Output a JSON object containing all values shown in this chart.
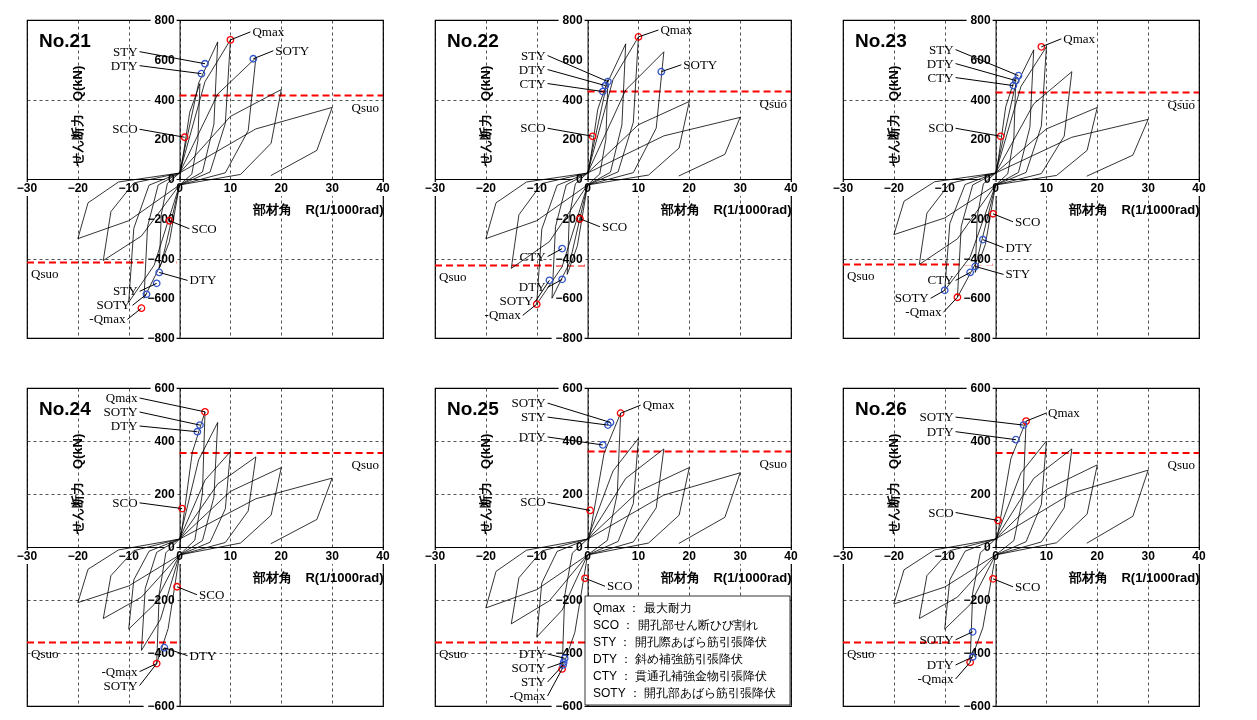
{
  "chart_data": [
    {
      "type": "line",
      "title": "No.21",
      "xlabel": "部材角　R(1/1000rad)",
      "ylabel": "せん断力　Q(kN)",
      "xlim": [
        -30,
        40
      ],
      "xticks": [
        -30,
        -20,
        -10,
        0,
        10,
        20,
        30,
        40
      ],
      "ylim": [
        -800,
        800
      ],
      "yticks": [
        -800,
        -600,
        -400,
        -200,
        0,
        200,
        400,
        600,
        800
      ],
      "grid": true,
      "series": [
        {
          "type": "line",
          "color": "#000000",
          "x": [
            0,
            2,
            4,
            3.6,
            2.4,
            0,
            -2,
            -4,
            -3.6,
            -2.4,
            0,
            3.75,
            7.5,
            6.75,
            4.5,
            0,
            -3.5,
            -7,
            -6.3,
            -4.2,
            0,
            5,
            10,
            9,
            6,
            0,
            -5,
            -10,
            -9,
            -6,
            0,
            7.5,
            15,
            13.5,
            9,
            0,
            -7.5,
            -15,
            -13.5,
            -9,
            0,
            10,
            20,
            18,
            12,
            0,
            -10,
            -20,
            -18,
            -12,
            0,
            15,
            30,
            27,
            18
          ],
          "values": [
            0,
            336,
            480,
            192,
            24,
            -30,
            -315,
            -450,
            -180,
            -22,
            30,
            483,
            690,
            276,
            35,
            -30,
            -420,
            -600,
            -240,
            -30,
            30,
            490,
            700,
            280,
            35,
            -30,
            -434,
            -620,
            -248,
            -31,
            30,
            427,
            610,
            244,
            31,
            -30,
            -287,
            -410,
            -164,
            -20,
            30,
            315,
            450,
            180,
            23,
            -30,
            -210,
            -300,
            -120,
            -15,
            30,
            252,
            360,
            144,
            18
          ]
        },
        {
          "type": "scatter",
          "marker": "circle",
          "color": "#ff0000",
          "x": [
            10,
            1,
            -2,
            -7.5
          ],
          "values": [
            700,
            210,
            -210,
            -650
          ]
        },
        {
          "type": "scatter",
          "marker": "circle",
          "color": "#3355cc",
          "x": [
            5,
            4.3,
            14.5,
            -4,
            -4.5,
            -6.5
          ],
          "values": [
            580,
            530,
            605,
            -470,
            -525,
            -580
          ]
        }
      ],
      "ref_lines": [
        {
          "axis": "y",
          "value": 420,
          "label": "Qsuo",
          "color": "#ff0000",
          "line_style": "dashed"
        },
        {
          "axis": "y",
          "value": -420,
          "label": "Qsuo",
          "color": "#ff0000",
          "line_style": "dashed"
        }
      ],
      "annotations": [
        {
          "text": "Qmax",
          "x": 10,
          "y": 700
        },
        {
          "text": "STY",
          "x": 5,
          "y": 580
        },
        {
          "text": "DTY",
          "x": 4.3,
          "y": 530
        },
        {
          "text": "SOTY",
          "x": 14.5,
          "y": 605
        },
        {
          "text": "SCO",
          "x": 1,
          "y": 210
        },
        {
          "text": "SCO",
          "x": -2,
          "y": -210
        },
        {
          "text": "DTY",
          "x": -4,
          "y": -470
        },
        {
          "text": "STY",
          "x": -4.5,
          "y": -525
        },
        {
          "text": "SOTY",
          "x": -6.5,
          "y": -580
        },
        {
          "text": "-Qmax",
          "x": -7.5,
          "y": -650
        }
      ]
    },
    {
      "type": "line",
      "title": "No.22",
      "xlabel": "部材角　R(1/1000rad)",
      "ylabel": "せん断力　Q(kN)",
      "xlim": [
        -30,
        40
      ],
      "xticks": [
        -30,
        -20,
        -10,
        0,
        10,
        20,
        30,
        40
      ],
      "ylim": [
        -800,
        800
      ],
      "yticks": [
        -800,
        -600,
        -400,
        -200,
        0,
        200,
        400,
        600,
        800
      ],
      "grid": true,
      "series": [
        {
          "type": "line",
          "color": "#000000",
          "x": [
            0,
            2,
            4,
            3.6,
            2.4,
            0,
            -2,
            -4,
            -3.6,
            -2.4,
            0,
            3.75,
            7.5,
            6.75,
            4.5,
            0,
            -3.5,
            -7,
            -6.3,
            -4.2,
            0,
            5,
            10,
            9,
            6,
            0,
            -5,
            -10,
            -9,
            -6,
            0,
            7.5,
            15,
            13.5,
            9,
            0,
            -7.5,
            -15,
            -13.5,
            -9,
            0,
            10,
            20,
            18,
            12,
            0,
            -10,
            -20,
            -18,
            -12,
            0,
            15,
            30,
            27,
            18
          ],
          "values": [
            0,
            350,
            500,
            200,
            25,
            -30,
            -336,
            -480,
            -192,
            -24,
            30,
            476,
            680,
            272,
            34,
            -30,
            -420,
            -600,
            -240,
            -30,
            30,
            500,
            715,
            286,
            36,
            -30,
            -441,
            -630,
            -252,
            -32,
            30,
            448,
            640,
            256,
            32,
            -30,
            -315,
            -450,
            -180,
            -23,
            30,
            273,
            390,
            156,
            20,
            -30,
            -210,
            -300,
            -120,
            -15,
            30,
            217,
            310,
            124,
            16
          ]
        },
        {
          "type": "scatter",
          "marker": "circle",
          "color": "#ff0000",
          "x": [
            10,
            1,
            -1.5,
            -10
          ],
          "values": [
            715,
            215,
            -200,
            -630
          ]
        },
        {
          "type": "scatter",
          "marker": "circle",
          "color": "#3355cc",
          "x": [
            4,
            3.5,
            3,
            14.5,
            -5,
            -5,
            -7.5
          ],
          "values": [
            490,
            470,
            440,
            540,
            -350,
            -505,
            -510
          ]
        }
      ],
      "ref_lines": [
        {
          "axis": "y",
          "value": 440,
          "label": "Qsuo",
          "color": "#ff0000",
          "line_style": "dashed"
        },
        {
          "axis": "y",
          "value": -435,
          "label": "Qsuo",
          "color": "#ff0000",
          "line_style": "dashed"
        }
      ],
      "annotations": [
        {
          "text": "Qmax",
          "x": 10,
          "y": 715
        },
        {
          "text": "STY",
          "x": 4,
          "y": 490
        },
        {
          "text": "DTY",
          "x": 3.5,
          "y": 470
        },
        {
          "text": "CTY",
          "x": 3,
          "y": 440
        },
        {
          "text": "SOTY",
          "x": 14.5,
          "y": 540
        },
        {
          "text": "SCO",
          "x": 1,
          "y": 215
        },
        {
          "text": "SCO",
          "x": -1.5,
          "y": -200
        },
        {
          "text": "CTY",
          "x": -5,
          "y": -350
        },
        {
          "text": "DTY",
          "x": -5,
          "y": -505
        },
        {
          "text": "SOTY",
          "x": -7.5,
          "y": -510
        },
        {
          "text": "-Qmax",
          "x": -10,
          "y": -630
        }
      ]
    },
    {
      "type": "line",
      "title": "No.23",
      "xlabel": "部材角　R(1/1000rad)",
      "ylabel": "せん断力　Q(kN)",
      "xlim": [
        -30,
        40
      ],
      "xticks": [
        -30,
        -20,
        -10,
        0,
        10,
        20,
        30,
        40
      ],
      "ylim": [
        -800,
        800
      ],
      "yticks": [
        -800,
        -600,
        -400,
        -200,
        0,
        200,
        400,
        600,
        800
      ],
      "grid": true,
      "series": [
        {
          "type": "line",
          "color": "#000000",
          "x": [
            0,
            2,
            4,
            3.6,
            2.4,
            0,
            -2,
            -4,
            -3.6,
            -2.4,
            0,
            3.75,
            7.5,
            6.75,
            4.5,
            0,
            -3.75,
            -7.5,
            -6.75,
            -4.5,
            0,
            5,
            10,
            9,
            6,
            0,
            -5,
            -10,
            -9,
            -6,
            0,
            7.5,
            15,
            13.5,
            9,
            0,
            -7.5,
            -15,
            -13.5,
            -9,
            0,
            10,
            20,
            18,
            12,
            0,
            -10,
            -20,
            -18,
            -12,
            0,
            15,
            30,
            27,
            18
          ],
          "values": [
            0,
            364,
            520,
            208,
            26,
            -30,
            -329,
            -470,
            -188,
            -24,
            30,
            455,
            650,
            260,
            33,
            -30,
            -417,
            -595,
            -238,
            -30,
            30,
            466,
            665,
            266,
            33,
            -30,
            -392,
            -560,
            -224,
            -28,
            30,
            378,
            540,
            216,
            27,
            -30,
            -301,
            -430,
            -172,
            -22,
            30,
            252,
            360,
            144,
            18,
            -30,
            -196,
            -280,
            -112,
            -14,
            30,
            210,
            300,
            120,
            15
          ]
        },
        {
          "type": "scatter",
          "marker": "circle",
          "color": "#ff0000",
          "x": [
            9,
            1,
            -0.5,
            -7.5
          ],
          "values": [
            665,
            215,
            -175,
            -595
          ]
        },
        {
          "type": "scatter",
          "marker": "circle",
          "color": "#3355cc",
          "x": [
            4.5,
            4,
            3.5,
            -2.5,
            -4,
            -5,
            -10
          ],
          "values": [
            520,
            495,
            470,
            -305,
            -440,
            -470,
            -560
          ]
        }
      ],
      "ref_lines": [
        {
          "axis": "y",
          "value": 435,
          "label": "Qsuo",
          "color": "#ff0000",
          "line_style": "dashed"
        },
        {
          "axis": "y",
          "value": -430,
          "label": "Qsuo",
          "color": "#ff0000",
          "line_style": "dashed"
        }
      ],
      "annotations": [
        {
          "text": "Qmax",
          "x": 9,
          "y": 665
        },
        {
          "text": "STY",
          "x": 4.5,
          "y": 520
        },
        {
          "text": "DTY",
          "x": 4,
          "y": 495
        },
        {
          "text": "CTY",
          "x": 3.5,
          "y": 470
        },
        {
          "text": "SCO",
          "x": 1,
          "y": 215
        },
        {
          "text": "SCO",
          "x": -0.5,
          "y": -175
        },
        {
          "text": "DTY",
          "x": -2.5,
          "y": -305
        },
        {
          "text": "STY",
          "x": -4,
          "y": -440
        },
        {
          "text": "CTY",
          "x": -5,
          "y": -470
        },
        {
          "text": "SOTY",
          "x": -10,
          "y": -560
        },
        {
          "text": "-Qmax",
          "x": -7.5,
          "y": -595
        }
      ]
    },
    {
      "type": "line",
      "title": "No.24",
      "xlabel": "部材角　R(1/1000rad)",
      "ylabel": "せん断力　Q(kN)",
      "xlim": [
        -30,
        40
      ],
      "xticks": [
        -30,
        -20,
        -10,
        0,
        10,
        20,
        30,
        40
      ],
      "ylim": [
        -600,
        600
      ],
      "yticks": [
        -600,
        -400,
        -200,
        0,
        200,
        400,
        600
      ],
      "grid": true,
      "series": [
        {
          "type": "line",
          "color": "#000000",
          "x": [
            0,
            2.5,
            5,
            4.5,
            3,
            0,
            -2.25,
            -4.5,
            -4,
            -2.7,
            0,
            3.75,
            7.5,
            6.75,
            4.5,
            0,
            -3.75,
            -7.5,
            -6.75,
            -4.5,
            0,
            5,
            10,
            9,
            6,
            0,
            -5,
            -10,
            -9,
            -6,
            0,
            7.5,
            15,
            13.5,
            9,
            0,
            -7.5,
            -15,
            -13.5,
            -9,
            0,
            10,
            20,
            18,
            12,
            0,
            -10,
            -20,
            -18,
            -12,
            0,
            15,
            30,
            27,
            18
          ],
          "values": [
            0,
            357,
            510,
            204,
            26,
            -30,
            -308,
            -440,
            -176,
            -22,
            30,
            329,
            470,
            188,
            24,
            -30,
            -273,
            -390,
            -156,
            -20,
            30,
            252,
            360,
            144,
            18,
            -30,
            -217,
            -310,
            -124,
            -16,
            30,
            238,
            340,
            136,
            17,
            -30,
            -189,
            -270,
            -108,
            -14,
            30,
            210,
            300,
            120,
            15,
            -30,
            -147,
            -210,
            -84,
            -11,
            30,
            182,
            260,
            104,
            13
          ]
        },
        {
          "type": "scatter",
          "marker": "circle",
          "color": "#ff0000",
          "x": [
            5,
            0.5,
            -0.5,
            -4.5
          ],
          "values": [
            510,
            145,
            -150,
            -440
          ]
        },
        {
          "type": "scatter",
          "marker": "circle",
          "color": "#3355cc",
          "x": [
            4,
            3.5,
            -3
          ],
          "values": [
            460,
            435,
            -380
          ]
        }
      ],
      "ref_lines": [
        {
          "axis": "y",
          "value": 355,
          "label": "Qsuo",
          "color": "#ff0000",
          "line_style": "dashed"
        },
        {
          "axis": "y",
          "value": -360,
          "label": "Qsuo",
          "color": "#ff0000",
          "line_style": "dashed"
        }
      ],
      "annotations": [
        {
          "text": "Qmax",
          "x": 5,
          "y": 510
        },
        {
          "text": "SOTY",
          "x": 4,
          "y": 460
        },
        {
          "text": "DTY",
          "x": 3.5,
          "y": 435
        },
        {
          "text": "SCO",
          "x": 0.5,
          "y": 145
        },
        {
          "text": "SCO",
          "x": -0.5,
          "y": -150
        },
        {
          "text": "DTY",
          "x": -3,
          "y": -380
        },
        {
          "text": "-Qmax",
          "x": -4.5,
          "y": -440
        },
        {
          "text": "SOTY",
          "x": -4.5,
          "y": -440
        }
      ]
    },
    {
      "type": "line",
      "title": "No.25",
      "xlabel": "部材角　R(1/1000rad)",
      "ylabel": "せん断力　Q(kN)",
      "xlim": [
        -30,
        40
      ],
      "xticks": [
        -30,
        -20,
        -10,
        0,
        10,
        20,
        30,
        40
      ],
      "ylim": [
        -600,
        600
      ],
      "yticks": [
        -600,
        -400,
        -200,
        0,
        200,
        400,
        600
      ],
      "grid": true,
      "series": [
        {
          "type": "line",
          "color": "#000000",
          "x": [
            0,
            3.25,
            6.5,
            5.85,
            3.9,
            0,
            -2.5,
            -5,
            -4.5,
            -3,
            0,
            5,
            10,
            9,
            6,
            0,
            -5,
            -10,
            -9,
            -6,
            0,
            7.5,
            15,
            13.5,
            9,
            0,
            -7.5,
            -15,
            -13.5,
            -9,
            0,
            10,
            20,
            18,
            12,
            0,
            -10,
            -20,
            -18,
            -12,
            0,
            15,
            30,
            27,
            18
          ],
          "values": [
            0,
            354,
            505,
            202,
            25,
            -30,
            -322,
            -460,
            -184,
            -23,
            30,
            287,
            410,
            164,
            21,
            -30,
            -238,
            -340,
            -136,
            -17,
            30,
            259,
            370,
            148,
            19,
            -30,
            -203,
            -290,
            -116,
            -15,
            30,
            210,
            300,
            120,
            15,
            -30,
            -161,
            -230,
            -92,
            -12,
            30,
            196,
            280,
            112,
            14
          ]
        },
        {
          "type": "scatter",
          "marker": "circle",
          "color": "#ff0000",
          "x": [
            6.5,
            0.5,
            -0.5,
            -5
          ],
          "values": [
            505,
            138,
            -118,
            -460
          ]
        },
        {
          "type": "scatter",
          "marker": "circle",
          "color": "#3355cc",
          "x": [
            4.5,
            4,
            3,
            -4.5,
            -4.7,
            -4.8
          ],
          "values": [
            470,
            460,
            385,
            -420,
            -435,
            -445
          ]
        }
      ],
      "ref_lines": [
        {
          "axis": "y",
          "value": 360,
          "label": "Qsuo",
          "color": "#ff0000",
          "line_style": "dashed"
        },
        {
          "axis": "y",
          "value": -360,
          "label": "Qsuo",
          "color": "#ff0000",
          "line_style": "dashed"
        }
      ],
      "annotations": [
        {
          "text": "Qmax",
          "x": 6.5,
          "y": 505
        },
        {
          "text": "SOTY",
          "x": 4.5,
          "y": 470
        },
        {
          "text": "STY",
          "x": 4,
          "y": 460
        },
        {
          "text": "DTY",
          "x": 3,
          "y": 385
        },
        {
          "text": "SCO",
          "x": 0.5,
          "y": 138
        },
        {
          "text": "SCO",
          "x": -0.5,
          "y": -118
        },
        {
          "text": "DTY",
          "x": -4.5,
          "y": -420
        },
        {
          "text": "SOTY",
          "x": -4.7,
          "y": -435
        },
        {
          "text": "STY",
          "x": -4.8,
          "y": -445
        },
        {
          "text": "-Qmax",
          "x": -5,
          "y": -460
        },
        "Qmax ： 最大耐力",
        "SCO ： 開孔部せん断ひび割れ",
        "STY ： 開孔際あばら筋引張降伏",
        "DTY ： 斜め補強筋引張降伏",
        "CTY ： 貫通孔補強金物引張降伏",
        "SOTY ： 開孔部あばら筋引張降伏"
      ]
    },
    {
      "type": "line",
      "title": "No.26",
      "xlabel": "部材角　R(1/1000rad)",
      "ylabel": "せん断力　Q(kN)",
      "xlim": [
        -30,
        40
      ],
      "xticks": [
        -30,
        -20,
        -10,
        0,
        10,
        20,
        30,
        40
      ],
      "ylim": [
        -600,
        600
      ],
      "yticks": [
        -600,
        -400,
        -200,
        0,
        200,
        400,
        600
      ],
      "grid": true,
      "series": [
        {
          "type": "line",
          "color": "#000000",
          "x": [
            0,
            3,
            6,
            5.4,
            3.6,
            0,
            -2.5,
            -5,
            -4.5,
            -3,
            0,
            5,
            10,
            9,
            6,
            0,
            -5,
            -10,
            -9,
            -6,
            0,
            7.5,
            15,
            13.5,
            9,
            0,
            -7.5,
            -15,
            -13.5,
            -9,
            0,
            10,
            20,
            18,
            12,
            0,
            -10,
            -20,
            -18,
            -12,
            0,
            15,
            30,
            27,
            18
          ],
          "values": [
            0,
            333,
            475,
            190,
            24,
            -30,
            -305,
            -435,
            -174,
            -22,
            30,
            280,
            400,
            160,
            20,
            -30,
            -217,
            -310,
            -124,
            -16,
            30,
            259,
            370,
            148,
            19,
            -30,
            -189,
            -270,
            -108,
            -14,
            30,
            217,
            310,
            124,
            16,
            -30,
            -151,
            -215,
            -86,
            -11,
            30,
            203,
            290,
            116,
            15
          ]
        },
        {
          "type": "scatter",
          "marker": "circle",
          "color": "#ff0000",
          "x": [
            6,
            0.5,
            -0.5,
            -5
          ],
          "values": [
            475,
            100,
            -120,
            -435
          ]
        },
        {
          "type": "scatter",
          "marker": "circle",
          "color": "#3355cc",
          "x": [
            5.5,
            4,
            -4.5,
            -4.5
          ],
          "values": [
            460,
            405,
            -320,
            -415
          ]
        }
      ],
      "ref_lines": [
        {
          "axis": "y",
          "value": 355,
          "label": "Qsuo",
          "color": "#ff0000",
          "line_style": "dashed"
        },
        {
          "axis": "y",
          "value": -360,
          "label": "Qsuo",
          "color": "#ff0000",
          "line_style": "dashed"
        }
      ],
      "annotations": [
        {
          "text": "Qmax",
          "x": 6,
          "y": 475
        },
        {
          "text": "SOTY",
          "x": 5.5,
          "y": 460
        },
        {
          "text": "DTY",
          "x": 4,
          "y": 405
        },
        {
          "text": "SCO",
          "x": 0.5,
          "y": 100
        },
        {
          "text": "SCO",
          "x": -0.5,
          "y": -120
        },
        {
          "text": "SOTY",
          "x": -4.5,
          "y": -320
        },
        {
          "text": "DTY",
          "x": -4.5,
          "y": -415
        },
        {
          "text": "-Qmax",
          "x": -5,
          "y": -435
        }
      ]
    }
  ]
}
